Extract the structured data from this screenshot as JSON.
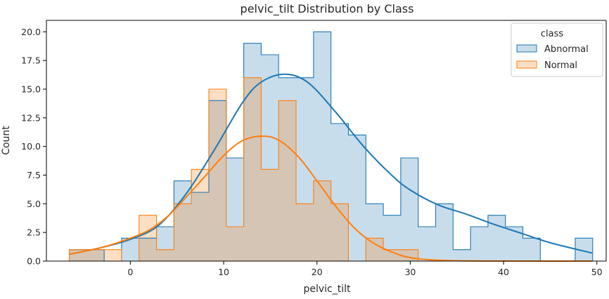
{
  "chart_data": {
    "type": "histogram",
    "title": "pelvic_tilt Distribution by Class",
    "xlabel": "pelvic_tilt",
    "ylabel": "Count",
    "xlim": [
      -9,
      51
    ],
    "ylim": [
      0,
      21.0
    ],
    "xticks": [
      0,
      10,
      20,
      30,
      40,
      50
    ],
    "yticks": [
      0.0,
      2.5,
      5.0,
      7.5,
      10.0,
      12.5,
      15.0,
      17.5,
      20.0
    ],
    "ytick_labels": [
      "0.0",
      "2.5",
      "5.0",
      "7.5",
      "10.0",
      "12.5",
      "15.0",
      "17.5",
      "20.0"
    ],
    "grid": false,
    "legend": {
      "title": "class",
      "position": "top-right"
    },
    "bins": {
      "start": -6.55,
      "width": 1.87,
      "count": 30
    },
    "series": [
      {
        "name": "Abnormal",
        "color": "#1f77b4",
        "counts": [
          1,
          1,
          0,
          2,
          2,
          3,
          7,
          6,
          14,
          9,
          19,
          18,
          16,
          16,
          20,
          12,
          11,
          5,
          4,
          9,
          3,
          5,
          1,
          3,
          4,
          3,
          2,
          0,
          0,
          2
        ],
        "kde": [
          [
            -6.5,
            0.6
          ],
          [
            -3,
            1.2
          ],
          [
            0,
            1.9
          ],
          [
            3,
            3.1
          ],
          [
            6,
            5.9
          ],
          [
            9,
            9.7
          ],
          [
            12,
            13.8
          ],
          [
            14,
            15.6
          ],
          [
            16.5,
            16.3
          ],
          [
            19,
            15.6
          ],
          [
            22,
            13.0
          ],
          [
            25,
            10.0
          ],
          [
            28,
            7.5
          ],
          [
            30,
            6.2
          ],
          [
            33,
            4.9
          ],
          [
            36,
            4.1
          ],
          [
            39,
            3.2
          ],
          [
            42,
            2.4
          ],
          [
            45,
            1.6
          ],
          [
            49.5,
            0.7
          ]
        ]
      },
      {
        "name": "Normal",
        "color": "#ff7f0e",
        "counts": [
          1,
          1,
          1,
          0,
          4,
          1,
          5,
          8,
          15,
          3,
          16,
          8,
          14,
          5,
          7,
          5,
          0,
          2,
          1,
          1,
          0,
          0,
          0,
          0,
          0,
          0,
          0,
          0,
          0,
          0
        ],
        "kde": [
          [
            -6.5,
            0.6
          ],
          [
            -3,
            1.2
          ],
          [
            0,
            2.0
          ],
          [
            2,
            2.7
          ],
          [
            4,
            3.9
          ],
          [
            6,
            5.6
          ],
          [
            8,
            7.4
          ],
          [
            10,
            9.2
          ],
          [
            12,
            10.5
          ],
          [
            14.2,
            10.9
          ],
          [
            16,
            10.5
          ],
          [
            18,
            9.1
          ],
          [
            20,
            7.0
          ],
          [
            22,
            4.8
          ],
          [
            24,
            2.9
          ],
          [
            26,
            1.6
          ],
          [
            28,
            0.8
          ],
          [
            30,
            0.3
          ],
          [
            33,
            0.08
          ],
          [
            38,
            0.01
          ],
          [
            49.5,
            0.0
          ]
        ]
      }
    ]
  }
}
